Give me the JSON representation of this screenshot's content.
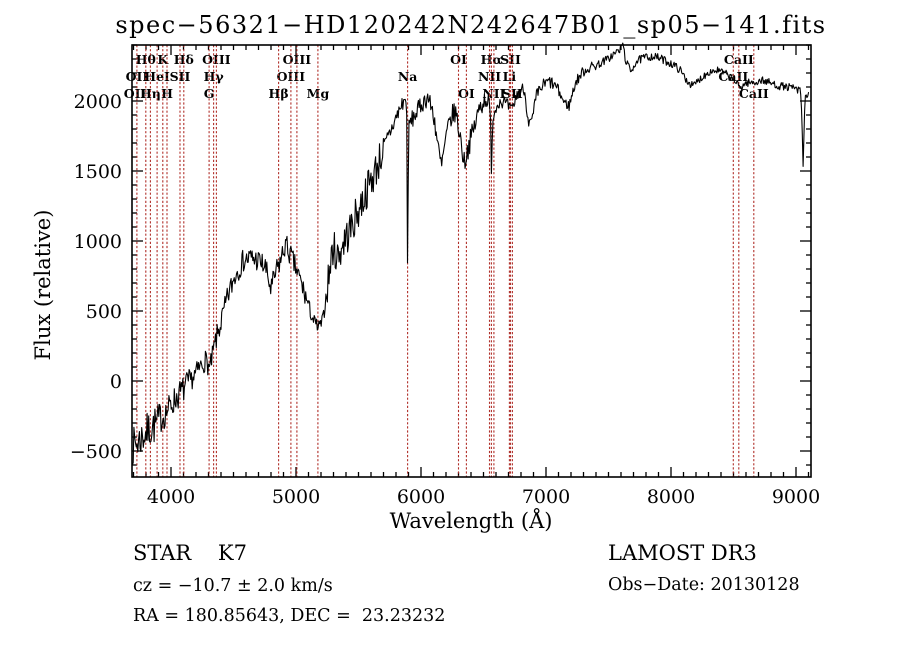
{
  "chart_data": {
    "type": "line",
    "title": "spec−56321−HD120242N242647B01_sp05−141.fits",
    "xlabel": "Wavelength (Å)",
    "ylabel": "Flux (relative)",
    "xlim": [
      3688,
      9120
    ],
    "ylim": [
      -686,
      2400
    ],
    "x_ticks": [
      4000,
      5000,
      6000,
      7000,
      8000,
      9000
    ],
    "y_ticks": [
      -500,
      0,
      500,
      1000,
      1500,
      2000
    ],
    "x_minor_step": 100,
    "y_minor_step": 100,
    "grid": false,
    "trace_color": "#000000",
    "marker_color": "#b02e28",
    "noise_seed": 7,
    "marker_wavelengths": [
      3727,
      3798,
      3835,
      3889,
      3934,
      3968,
      4072,
      4102,
      4305,
      4341,
      4363,
      4861,
      4959,
      5007,
      5175,
      5893,
      6300,
      6363,
      6548,
      6563,
      6583,
      6707,
      6716,
      6731,
      8498,
      8542,
      8662
    ],
    "spectral_lines": [
      {
        "label": "OII",
        "wavelength": 3727,
        "row": 2
      },
      {
        "label": "OII",
        "wavelength": 3712,
        "row": 3
      },
      {
        "label": "Hθ",
        "wavelength": 3798,
        "row": 1
      },
      {
        "label": "Hη",
        "wavelength": 3835,
        "row": 3
      },
      {
        "label": "HeI",
        "wavelength": 3889,
        "row": 2
      },
      {
        "label": "K",
        "wavelength": 3934,
        "row": 1
      },
      {
        "label": "H",
        "wavelength": 3968,
        "row": 3
      },
      {
        "label": "SII",
        "wavelength": 4072,
        "row": 2
      },
      {
        "label": "Hδ",
        "wavelength": 4102,
        "row": 1
      },
      {
        "label": "G",
        "wavelength": 4305,
        "row": 3
      },
      {
        "label": "Hγ",
        "wavelength": 4341,
        "row": 2
      },
      {
        "label": "OIII",
        "wavelength": 4363,
        "row": 1
      },
      {
        "label": "Hβ",
        "wavelength": 4861,
        "row": 3
      },
      {
        "label": "OIII",
        "wavelength": 4959,
        "row": 2
      },
      {
        "label": "OIII",
        "wavelength": 5007,
        "row": 1
      },
      {
        "label": "Mg",
        "wavelength": 5175,
        "row": 3
      },
      {
        "label": "Na",
        "wavelength": 5893,
        "row": 2
      },
      {
        "label": "OI",
        "wavelength": 6300,
        "row": 1
      },
      {
        "label": "OI",
        "wavelength": 6363,
        "row": 3
      },
      {
        "label": "NII",
        "wavelength": 6548,
        "row": 2
      },
      {
        "label": "Hα",
        "wavelength": 6563,
        "row": 1
      },
      {
        "label": "NII",
        "wavelength": 6583,
        "row": 3
      },
      {
        "label": "Li",
        "wavelength": 6707,
        "row": 2
      },
      {
        "label": "SII",
        "wavelength": 6716,
        "row": 1
      },
      {
        "label": "SII",
        "wavelength": 6731,
        "row": 3
      },
      {
        "label": "CaII",
        "wavelength": 8498,
        "row": 2
      },
      {
        "label": "CaII",
        "wavelength": 8542,
        "row": 1
      },
      {
        "label": "CaII",
        "wavelength": 8662,
        "row": 3
      }
    ],
    "envelope": [
      [
        3690,
        -470
      ],
      [
        3730,
        -440
      ],
      [
        3770,
        -400
      ],
      [
        3810,
        -360
      ],
      [
        3850,
        -330
      ],
      [
        3900,
        -290
      ],
      [
        3950,
        -240
      ],
      [
        4000,
        -170
      ],
      [
        4060,
        -100
      ],
      [
        4120,
        -40
      ],
      [
        4180,
        30
      ],
      [
        4240,
        110
      ],
      [
        4280,
        150
      ],
      [
        4310,
        80
      ],
      [
        4350,
        260
      ],
      [
        4410,
        450
      ],
      [
        4460,
        620
      ],
      [
        4520,
        770
      ],
      [
        4580,
        860
      ],
      [
        4640,
        880
      ],
      [
        4700,
        860
      ],
      [
        4755,
        810
      ],
      [
        4800,
        650
      ],
      [
        4845,
        790
      ],
      [
        4885,
        880
      ],
      [
        4915,
        980
      ],
      [
        4955,
        900
      ],
      [
        5000,
        800
      ],
      [
        5045,
        690
      ],
      [
        5095,
        550
      ],
      [
        5140,
        430
      ],
      [
        5180,
        375
      ],
      [
        5215,
        430
      ],
      [
        5255,
        700
      ],
      [
        5295,
        950
      ],
      [
        5335,
        890
      ],
      [
        5385,
        1000
      ],
      [
        5445,
        1100
      ],
      [
        5505,
        1230
      ],
      [
        5565,
        1360
      ],
      [
        5625,
        1480
      ],
      [
        5685,
        1620
      ],
      [
        5745,
        1760
      ],
      [
        5805,
        1890
      ],
      [
        5865,
        2010
      ],
      [
        5886,
        1960
      ],
      [
        5893,
        650
      ],
      [
        5901,
        1830
      ],
      [
        5945,
        1890
      ],
      [
        6000,
        1970
      ],
      [
        6055,
        2030
      ],
      [
        6105,
        1890
      ],
      [
        6145,
        1610
      ],
      [
        6165,
        1530
      ],
      [
        6195,
        1710
      ],
      [
        6235,
        1870
      ],
      [
        6275,
        1930
      ],
      [
        6315,
        1740
      ],
      [
        6345,
        1560
      ],
      [
        6375,
        1660
      ],
      [
        6425,
        1810
      ],
      [
        6475,
        1970
      ],
      [
        6525,
        2030
      ],
      [
        6556,
        1900
      ],
      [
        6563,
        1430
      ],
      [
        6572,
        1880
      ],
      [
        6620,
        2000
      ],
      [
        6670,
        1990
      ],
      [
        6725,
        1930
      ],
      [
        6775,
        2060
      ],
      [
        6825,
        2090
      ],
      [
        6862,
        1850
      ],
      [
        6885,
        1840
      ],
      [
        6925,
        2040
      ],
      [
        6975,
        2110
      ],
      [
        7025,
        2140
      ],
      [
        7085,
        2100
      ],
      [
        7145,
        1990
      ],
      [
        7185,
        1965
      ],
      [
        7235,
        2130
      ],
      [
        7295,
        2210
      ],
      [
        7355,
        2240
      ],
      [
        7425,
        2265
      ],
      [
        7495,
        2300
      ],
      [
        7565,
        2350
      ],
      [
        7600,
        2370
      ],
      [
        7612,
        2425
      ],
      [
        7635,
        2300
      ],
      [
        7675,
        2210
      ],
      [
        7720,
        2280
      ],
      [
        7785,
        2310
      ],
      [
        7855,
        2320
      ],
      [
        7925,
        2300
      ],
      [
        7995,
        2270
      ],
      [
        8065,
        2230
      ],
      [
        8125,
        2150
      ],
      [
        8175,
        2105
      ],
      [
        8235,
        2160
      ],
      [
        8305,
        2210
      ],
      [
        8375,
        2220
      ],
      [
        8445,
        2190
      ],
      [
        8505,
        2150
      ],
      [
        8550,
        2095
      ],
      [
        8605,
        2130
      ],
      [
        8665,
        2130
      ],
      [
        8725,
        2150
      ],
      [
        8790,
        2130
      ],
      [
        8855,
        2110
      ],
      [
        8925,
        2100
      ],
      [
        8995,
        2090
      ],
      [
        9040,
        2060
      ],
      [
        9057,
        1520
      ],
      [
        9072,
        2040
      ],
      [
        9100,
        2030
      ]
    ],
    "noise_regions": [
      [
        3688,
        3920,
        135
      ],
      [
        3920,
        4150,
        100
      ],
      [
        4150,
        4350,
        75
      ],
      [
        4350,
        5100,
        85
      ],
      [
        5100,
        5250,
        55
      ],
      [
        5250,
        5700,
        135
      ],
      [
        5700,
        6080,
        65
      ],
      [
        6080,
        6560,
        80
      ],
      [
        6560,
        7060,
        48
      ],
      [
        7060,
        7420,
        38
      ],
      [
        7420,
        8150,
        30
      ],
      [
        8150,
        9030,
        28
      ],
      [
        9030,
        9120,
        35
      ]
    ]
  },
  "footer": {
    "left": {
      "class_line": "STAR    K7",
      "cz_line": "cz = −10.7 ± 2.0 km/s",
      "radec_line": "RA = 180.85643, DEC =  23.23232"
    },
    "right": {
      "survey_line": "LAMOST DR3",
      "obsdate_line": "Obs−Date: 20130128"
    }
  }
}
